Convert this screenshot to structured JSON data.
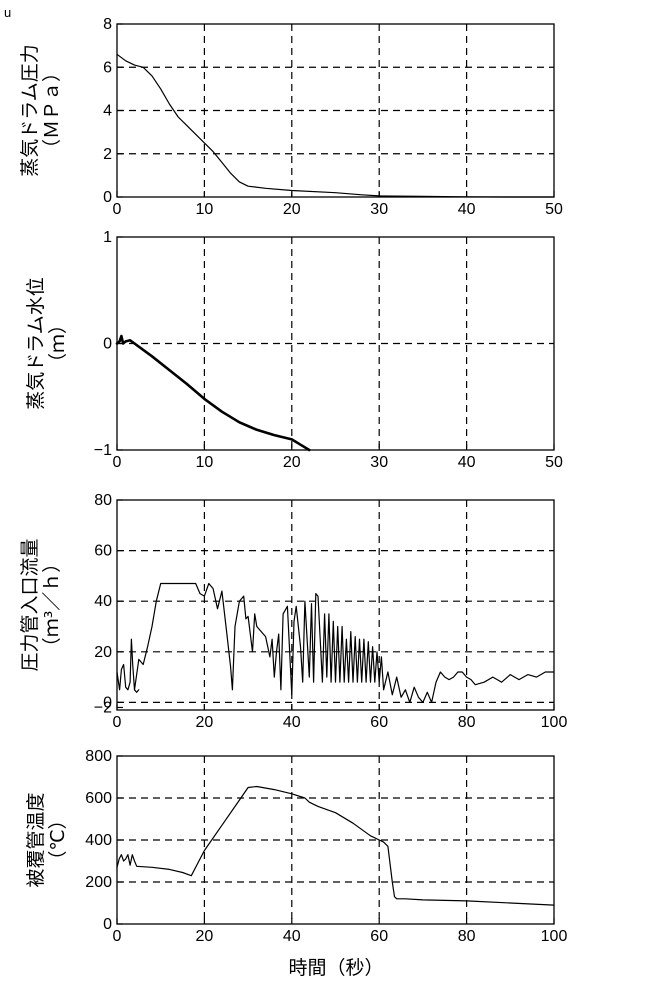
{
  "corner_mark": "u",
  "xlabel": "時間（秒）",
  "chart_data": [
    {
      "type": "line",
      "ylabel": [
        "蒸気ドラム圧力",
        "（ＭＰａ）"
      ],
      "xlim": [
        0,
        50
      ],
      "ylim": [
        0,
        8
      ],
      "xticks": [
        0,
        10,
        20,
        30,
        40,
        50
      ],
      "yticks": [
        0,
        2,
        4,
        6,
        8
      ],
      "xtick_labels": [
        "0",
        "10",
        "20",
        "30",
        "40",
        "50"
      ],
      "ytick_labels": [
        "0",
        "2",
        "4",
        "6",
        "8"
      ],
      "grid_x": [
        10,
        20,
        30,
        40
      ],
      "grid_y": [
        2,
        4,
        6
      ],
      "series": [
        {
          "stroke_width": 1.2,
          "points": [
            [
              0,
              6.6
            ],
            [
              1,
              6.3
            ],
            [
              2,
              6.1
            ],
            [
              3,
              6.0
            ],
            [
              4,
              5.6
            ],
            [
              5,
              5.0
            ],
            [
              6,
              4.3
            ],
            [
              7,
              3.7
            ],
            [
              8,
              3.3
            ],
            [
              9,
              2.9
            ],
            [
              10,
              2.5
            ],
            [
              11,
              2.1
            ],
            [
              12,
              1.6
            ],
            [
              13,
              1.1
            ],
            [
              14,
              0.7
            ],
            [
              15,
              0.5
            ],
            [
              17,
              0.4
            ],
            [
              20,
              0.3
            ],
            [
              25,
              0.2
            ],
            [
              28,
              0.1
            ],
            [
              30,
              0.05
            ],
            [
              35,
              0.03
            ],
            [
              40,
              0.01
            ],
            [
              45,
              0.0
            ],
            [
              50,
              0.0
            ]
          ]
        }
      ]
    },
    {
      "type": "line",
      "ylabel": [
        "蒸気ドラム水位",
        "（ｍ）"
      ],
      "xlim": [
        0,
        50
      ],
      "ylim": [
        -1,
        1
      ],
      "xticks": [
        0,
        10,
        20,
        30,
        40,
        50
      ],
      "yticks": [
        -1,
        0,
        1
      ],
      "xtick_labels": [
        "0",
        "10",
        "20",
        "30",
        "40",
        "50"
      ],
      "ytick_labels": [
        "−1",
        "0",
        "1"
      ],
      "grid_x": [
        10,
        20,
        30,
        40
      ],
      "grid_y": [
        0
      ],
      "series": [
        {
          "stroke_width": 2.6,
          "points": [
            [
              0,
              0.0
            ],
            [
              0.3,
              0.02
            ],
            [
              0.5,
              0.07
            ],
            [
              0.7,
              0.0
            ],
            [
              1,
              0.02
            ],
            [
              1.5,
              0.03
            ],
            [
              2,
              0.0
            ],
            [
              4,
              -0.12
            ],
            [
              6,
              -0.25
            ],
            [
              8,
              -0.38
            ],
            [
              10,
              -0.52
            ],
            [
              12,
              -0.64
            ],
            [
              14,
              -0.74
            ],
            [
              16,
              -0.81
            ],
            [
              18,
              -0.86
            ],
            [
              20,
              -0.9
            ],
            [
              21,
              -0.95
            ],
            [
              22,
              -1.0
            ]
          ]
        }
      ]
    },
    {
      "type": "line",
      "ylabel": [
        "圧力管入口流量",
        "（ｍ³／ｈ）"
      ],
      "xlim": [
        0,
        100
      ],
      "ylim": [
        -3,
        80
      ],
      "xticks": [
        0,
        20,
        40,
        60,
        80,
        100
      ],
      "yticks": [
        -2,
        0,
        20,
        40,
        60,
        80
      ],
      "xtick_labels": [
        "0",
        "20",
        "40",
        "60",
        "80",
        "100"
      ],
      "ytick_labels": [
        "−2",
        "0",
        "20",
        "40",
        "60",
        "80"
      ],
      "grid_x": [
        20,
        40,
        60,
        80
      ],
      "grid_y": [
        0,
        20,
        40,
        60
      ],
      "series": [
        {
          "stroke_width": 1.2,
          "points": [
            [
              0,
              12
            ],
            [
              0.6,
              5
            ],
            [
              1,
              13
            ],
            [
              1.5,
              15
            ],
            [
              2,
              6
            ],
            [
              2.5,
              5
            ],
            [
              3,
              8
            ],
            [
              3.3,
              25
            ],
            [
              3.6,
              15
            ],
            [
              4,
              5
            ],
            [
              5,
              17
            ],
            [
              6,
              15
            ],
            [
              7,
              22
            ],
            [
              8,
              30
            ],
            [
              9,
              40
            ],
            [
              10,
              47
            ],
            [
              18,
              47
            ],
            [
              19,
              43
            ],
            [
              20,
              42
            ],
            [
              21,
              47
            ],
            [
              22,
              45
            ],
            [
              23,
              37
            ],
            [
              24,
              44
            ],
            [
              25,
              29
            ],
            [
              26,
              14
            ],
            [
              26.4,
              5
            ],
            [
              27,
              30
            ],
            [
              28,
              40
            ],
            [
              29,
              42
            ],
            [
              29.5,
              33
            ],
            [
              30,
              34
            ],
            [
              31,
              20
            ],
            [
              31.5,
              35
            ],
            [
              32,
              30
            ],
            [
              33,
              28
            ],
            [
              34,
              26
            ],
            [
              35,
              18
            ],
            [
              35.5,
              25
            ],
            [
              36,
              10
            ],
            [
              36.5,
              20
            ],
            [
              37,
              27
            ],
            [
              37.5,
              5
            ],
            [
              38,
              35
            ],
            [
              39,
              38
            ],
            [
              40,
              3
            ],
            [
              40.5,
              32
            ],
            [
              41,
              38
            ],
            [
              42,
              22
            ],
            [
              42.5,
              8
            ],
            [
              43,
              40
            ],
            [
              44,
              10
            ],
            [
              44.5,
              39
            ],
            [
              45,
              8
            ],
            [
              45.5,
              43
            ],
            [
              46,
              42
            ],
            [
              47,
              8
            ],
            [
              47.5,
              35
            ],
            [
              48,
              10
            ],
            [
              48.5,
              35
            ],
            [
              49,
              8
            ],
            [
              49.5,
              32
            ],
            [
              50,
              8
            ],
            [
              50.5,
              30
            ],
            [
              51,
              8
            ],
            [
              51.5,
              30
            ],
            [
              52,
              8
            ],
            [
              52.5,
              25
            ],
            [
              53,
              8
            ],
            [
              53.5,
              28
            ],
            [
              54,
              8
            ],
            [
              54.5,
              26
            ],
            [
              55,
              8
            ],
            [
              55.5,
              25
            ],
            [
              56,
              8
            ],
            [
              56.5,
              25
            ],
            [
              57,
              8
            ],
            [
              57.5,
              24
            ],
            [
              58,
              8
            ],
            [
              58.5,
              22
            ],
            [
              59,
              8
            ],
            [
              59.5,
              20
            ],
            [
              60,
              8
            ],
            [
              60.5,
              18
            ],
            [
              61,
              5
            ],
            [
              62,
              12
            ],
            [
              63,
              3
            ],
            [
              64,
              10
            ],
            [
              65,
              2
            ],
            [
              66,
              5
            ],
            [
              67,
              0
            ],
            [
              68,
              6
            ],
            [
              69,
              2
            ],
            [
              70,
              0
            ],
            [
              71,
              4
            ],
            [
              72,
              0
            ],
            [
              73,
              8
            ],
            [
              74,
              12
            ],
            [
              75,
              10
            ],
            [
              76,
              9
            ],
            [
              77,
              10
            ],
            [
              78,
              12
            ],
            [
              79,
              12
            ],
            [
              80,
              10
            ],
            [
              81,
              9
            ],
            [
              82,
              7
            ],
            [
              84,
              8
            ],
            [
              86,
              10
            ],
            [
              87,
              9
            ],
            [
              88,
              8
            ],
            [
              90,
              11
            ],
            [
              92,
              9
            ],
            [
              94,
              11
            ],
            [
              96,
              10
            ],
            [
              98,
              12
            ],
            [
              100,
              12
            ]
          ]
        },
        {
          "stroke_width": 1.2,
          "points": [
            [
              4,
              5
            ],
            [
              4.5,
              4
            ],
            [
              5,
              5
            ]
          ]
        }
      ]
    },
    {
      "type": "line",
      "ylabel": [
        "被覆管温度",
        "（℃）"
      ],
      "xlim": [
        0,
        100
      ],
      "ylim": [
        0,
        800
      ],
      "xticks": [
        0,
        20,
        40,
        60,
        80,
        100
      ],
      "yticks": [
        0,
        200,
        400,
        600,
        800
      ],
      "xtick_labels": [
        "0",
        "20",
        "40",
        "60",
        "80",
        "100"
      ],
      "ytick_labels": [
        "0",
        "200",
        "400",
        "600",
        "800"
      ],
      "grid_x": [
        20,
        40,
        60,
        80
      ],
      "grid_y": [
        200,
        400,
        600
      ],
      "series": [
        {
          "stroke_width": 1.2,
          "points": [
            [
              0,
              270
            ],
            [
              0.5,
              310
            ],
            [
              1,
              330
            ],
            [
              1.5,
              300
            ],
            [
              2,
              310
            ],
            [
              2.5,
              330
            ],
            [
              3,
              280
            ],
            [
              3.5,
              330
            ],
            [
              4,
              300
            ],
            [
              4.5,
              275
            ],
            [
              8,
              270
            ],
            [
              12,
              260
            ],
            [
              15,
              245
            ],
            [
              17,
              230
            ],
            [
              20,
              350
            ],
            [
              24,
              470
            ],
            [
              28,
              590
            ],
            [
              30,
              650
            ],
            [
              32,
              655
            ],
            [
              36,
              640
            ],
            [
              40,
              620
            ],
            [
              43,
              600
            ],
            [
              44,
              580
            ],
            [
              46,
              560
            ],
            [
              50,
              530
            ],
            [
              54,
              480
            ],
            [
              58,
              420
            ],
            [
              60,
              400
            ],
            [
              61,
              390
            ],
            [
              62,
              370
            ],
            [
              63,
              200
            ],
            [
              63.5,
              130
            ],
            [
              64,
              120
            ],
            [
              66,
              120
            ],
            [
              70,
              115
            ],
            [
              80,
              110
            ],
            [
              90,
              100
            ],
            [
              100,
              90
            ]
          ]
        }
      ]
    }
  ]
}
